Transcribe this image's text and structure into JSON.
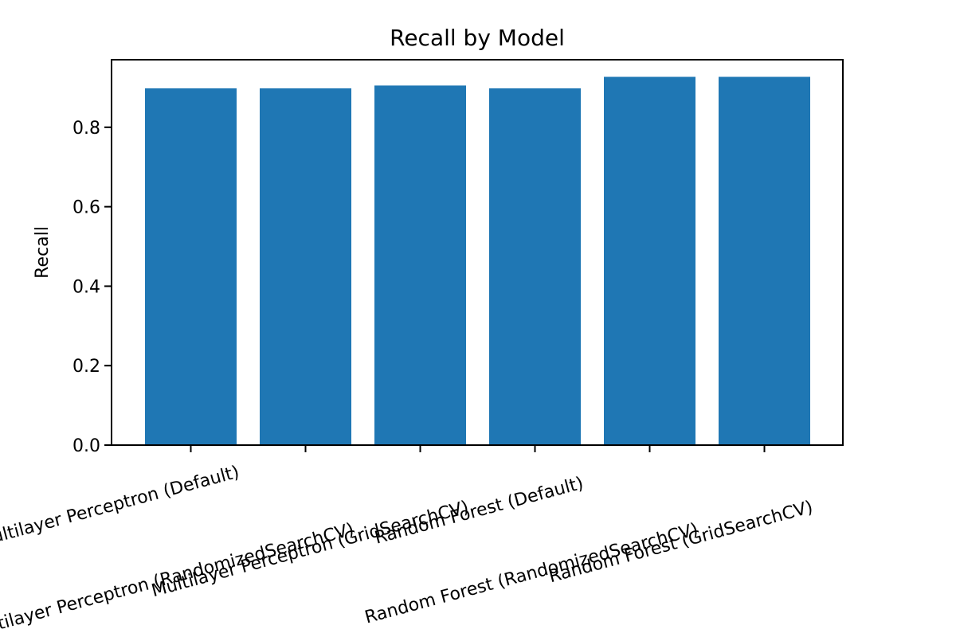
{
  "chart_data": {
    "type": "bar",
    "title": "Recall by Model",
    "xlabel": "",
    "ylabel": "Recall",
    "ylim": [
      0,
      0.97
    ],
    "yticks": [
      "0.0",
      "0.2",
      "0.4",
      "0.6",
      "0.8"
    ],
    "categories": [
      "Multilayer Perceptron (Default)",
      "Multilayer Perceptron (RandomizedSearchCV)",
      "Multilayer Perceptron (GridSearchCV)",
      "Random Forest (Default)",
      "Random Forest (RandomizedSearchCV)",
      "Random Forest (GridSearchCV)"
    ],
    "values": [
      0.898,
      0.898,
      0.905,
      0.898,
      0.927,
      0.927
    ],
    "colors": {
      "bar": "#1f77b4"
    },
    "grid": false,
    "legend": "none"
  }
}
